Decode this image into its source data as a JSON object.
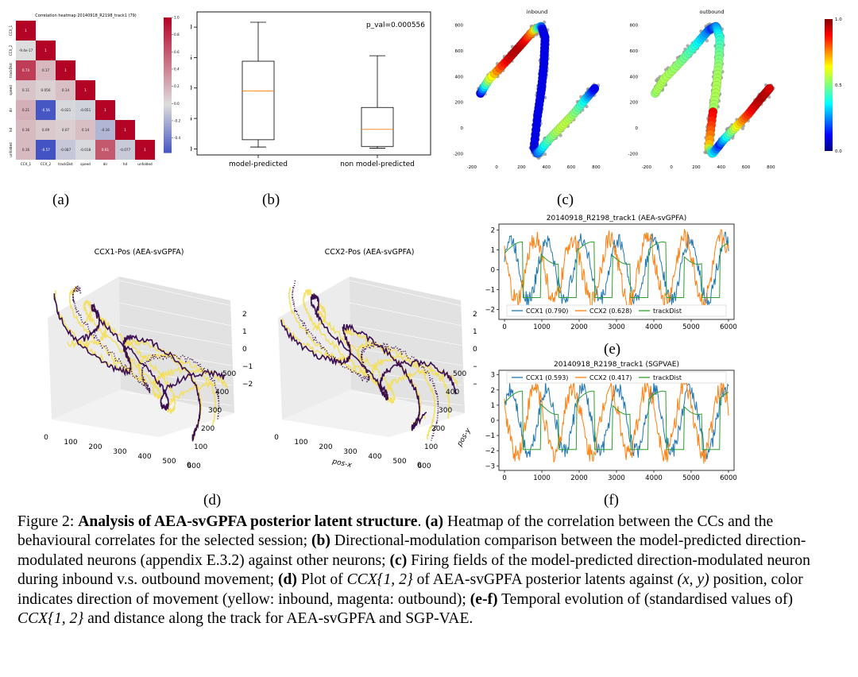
{
  "figure": {
    "sublabels": [
      "(a)",
      "(b)",
      "(c)",
      "(d)",
      "(e)",
      "(f)"
    ],
    "caption": {
      "prefix": "Figure 2: ",
      "title": "Analysis of AEA-svGPFA posterior latent structure",
      "after_title": ". ",
      "a_label": "(a)",
      "a_text": " Heatmap of the correlation between the CCs and the behavioural correlates for the selected session; ",
      "b_label": "(b)",
      "b_text": " Directional-modulation comparison between the model-predicted direction-modulated neurons (appendix E.3.2) against other neurons; ",
      "c_label": "(c)",
      "c_text": " Firing fields of the model-predicted direction-modulated neuron during inbound v.s. outbound movement; ",
      "d_label": "(d)",
      "d_text1": " Plot of ",
      "d_math1": "CCX{1, 2}",
      "d_text2": " of AEA-svGPFA posterior latents against ",
      "d_math2": "(x, y)",
      "d_text3": " position, color indicates direction of movement (yellow: inbound, magenta: outbound); ",
      "ef_label": "(e-f)",
      "ef_text1": " Temporal evolution of (standardised values of) ",
      "ef_math": "CCX{1, 2}",
      "ef_text2": " and distance along the track for AEA-svGPFA and SGP-VAE."
    }
  },
  "chart_data": [
    {
      "id": "a",
      "type": "heatmap",
      "title": "Correlation heatmap 20140918_R2198_track1 (79)",
      "labels": [
        "CCX_1",
        "CCX_2",
        "trackDist",
        "speed",
        "dir",
        "hd",
        "unfolded"
      ],
      "lower_triangle": [
        [
          "1"
        ],
        [
          "-9.4e-17",
          "1"
        ],
        [
          "0.74",
          "0.17",
          "1"
        ],
        [
          "0.11",
          "0.056",
          "0.14",
          "1"
        ],
        [
          "0.21",
          "-0.56",
          "-0.021",
          "-0.051",
          "1"
        ],
        [
          "0.16",
          "0.09",
          "0.07",
          "0.14",
          "-0.16",
          "1"
        ],
        [
          "0.16",
          "-0.57",
          "-0.087",
          "-0.018",
          "0.61",
          "-0.077",
          "1"
        ]
      ],
      "colorbar_ticks": [
        "1.0",
        "0.8",
        "0.6",
        "0.4",
        "0.2",
        "0.0",
        "-0.2",
        "-0.4"
      ],
      "colorbar_range": [
        -0.57,
        1.0
      ]
    },
    {
      "id": "b",
      "type": "box",
      "categories": [
        "model-predicted",
        "non model-predicted"
      ],
      "boxes": [
        {
          "whisker_low": 0.003,
          "q1": 0.015,
          "median": 0.095,
          "q3": 0.144,
          "whisker_high": 0.208
        },
        {
          "whisker_low": 0.001,
          "q1": 0.004,
          "median": 0.032,
          "q3": 0.068,
          "whisker_high": 0.153
        }
      ],
      "ylim": [
        -0.01,
        0.225
      ],
      "yticks": [
        "0.00",
        "0.05",
        "0.10",
        "0.15",
        "0.20"
      ],
      "annotation": "p_val=0.000556"
    },
    {
      "id": "c",
      "type": "scatter",
      "panels": [
        "inbound",
        "outbound"
      ],
      "xticks": [
        "-200",
        "0",
        "200",
        "400",
        "600",
        "800"
      ],
      "yticks": [
        "800",
        "600",
        "400",
        "200",
        "0",
        "-200"
      ],
      "xlim": [
        -250,
        900
      ],
      "ylim": [
        -270,
        870
      ],
      "colorbar_ticks": [
        "1.0",
        "0.5",
        "0.0"
      ]
    },
    {
      "id": "d",
      "type": "scatter",
      "panels": [
        "CCX1-Pos (AEA-svGPFA)",
        "CCX2-Pos (AEA-svGPFA)"
      ],
      "x_ticks": [
        "0",
        "100",
        "200",
        "300",
        "400",
        "500",
        "600"
      ],
      "y_ticks": [
        "0",
        "100",
        "200",
        "300",
        "400",
        "500"
      ],
      "z_ticks": [
        "2",
        "1",
        "0",
        "−1",
        "−2"
      ],
      "xlabel": "pos-x",
      "ylabel": "pos-y",
      "colors": {
        "inbound": "#f5de4f",
        "outbound": "#3b0f4f"
      }
    },
    {
      "id": "e",
      "type": "line",
      "title": "20140918_R2198_track1 (AEA-svGPFA)",
      "series": [
        {
          "name": "CCX1 (0.790)",
          "color": "#1f77b4"
        },
        {
          "name": "CCX2 (0.628)",
          "color": "#ff7f0e"
        },
        {
          "name": "trackDist",
          "color": "#2ca02c"
        }
      ],
      "xlim": [
        -150,
        6150
      ],
      "ylim": [
        -2.5,
        2.3
      ],
      "xticks": [
        "0",
        "1000",
        "2000",
        "3000",
        "4000",
        "5000",
        "6000"
      ],
      "yticks": [
        "2",
        "1",
        "0",
        "−1",
        "−2"
      ]
    },
    {
      "id": "f",
      "type": "line",
      "title": "20140918_R2198_track1 (SGPVAE)",
      "series": [
        {
          "name": "CCX1 (0.593)",
          "color": "#1f77b4"
        },
        {
          "name": "CCX2 (0.417)",
          "color": "#ff7f0e"
        },
        {
          "name": "trackDist",
          "color": "#2ca02c"
        }
      ],
      "xlim": [
        -150,
        6150
      ],
      "ylim": [
        -3.3,
        3.3
      ],
      "xticks": [
        "0",
        "1000",
        "2000",
        "3000",
        "4000",
        "5000",
        "6000"
      ],
      "yticks": [
        "3",
        "2",
        "1",
        "0",
        "−1",
        "−2",
        "−3"
      ]
    }
  ]
}
